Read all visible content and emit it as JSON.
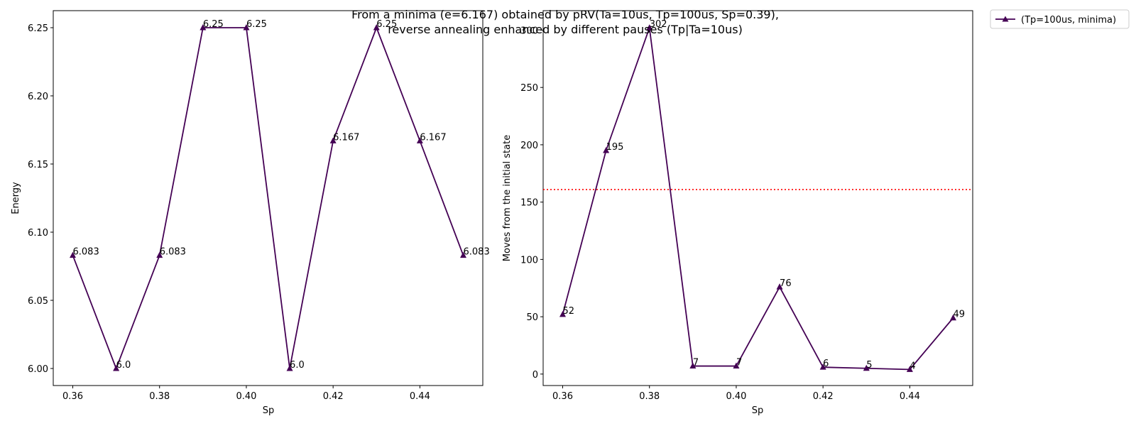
{
  "figure": {
    "title_line1": "From a minima (e=6.167) obtained by pRV(Ta=10us, Tp=100us, Sp=0.39),",
    "title_line2": "reverse annealing enhanced by different pauses (Tp|Ta=10us)"
  },
  "legend": {
    "label": "(Tp=100us, minima)",
    "placement": "upper-right-outside"
  },
  "colors": {
    "series": "#440154",
    "reference_line": "#ff0000"
  },
  "chart_data": [
    {
      "type": "line",
      "xlabel": "Sp",
      "ylabel": "Energy",
      "x": [
        0.36,
        0.37,
        0.38,
        0.39,
        0.4,
        0.41,
        0.42,
        0.43,
        0.44,
        0.45
      ],
      "series": [
        {
          "name": "(Tp=100us, minima)",
          "values": [
            6.083,
            6.0,
            6.083,
            6.25,
            6.25,
            6.0,
            6.167,
            6.25,
            6.167,
            6.083
          ],
          "marker": "triangle-up"
        }
      ],
      "data_labels": [
        "6.083",
        "6.0",
        "6.083",
        "6.25",
        "6.25",
        "6.0",
        "6.167",
        "6.25",
        "6.167",
        "6.083"
      ],
      "xlim": [
        0.3555,
        0.4545
      ],
      "ylim": [
        5.9875,
        6.2625
      ],
      "xticks": [
        0.36,
        0.38,
        0.4,
        0.42,
        0.44
      ],
      "xtick_labels": [
        "0.36",
        "0.38",
        "0.40",
        "0.42",
        "0.44"
      ],
      "yticks": [
        6.0,
        6.05,
        6.1,
        6.15,
        6.2,
        6.25
      ],
      "ytick_labels": [
        "6.00",
        "6.05",
        "6.10",
        "6.15",
        "6.20",
        "6.25"
      ],
      "grid": false
    },
    {
      "type": "line",
      "xlabel": "Sp",
      "ylabel": "Moves from the initial state",
      "x": [
        0.36,
        0.37,
        0.38,
        0.39,
        0.4,
        0.41,
        0.42,
        0.43,
        0.44,
        0.45
      ],
      "series": [
        {
          "name": "(Tp=100us, minima)",
          "values": [
            52,
            195,
            302,
            7,
            7,
            76,
            6,
            5,
            4,
            49
          ],
          "marker": "triangle-up"
        }
      ],
      "data_labels": [
        "52",
        "195",
        "302",
        "7",
        "7",
        "76",
        "6",
        "5",
        "4",
        "49"
      ],
      "reference_line": {
        "orientation": "horizontal",
        "y": 161,
        "style": "dotted"
      },
      "xlim": [
        0.3555,
        0.4545
      ],
      "ylim": [
        -10,
        317
      ],
      "xticks": [
        0.36,
        0.38,
        0.4,
        0.42,
        0.44
      ],
      "xtick_labels": [
        "0.36",
        "0.38",
        "0.40",
        "0.42",
        "0.44"
      ],
      "yticks": [
        0,
        50,
        100,
        150,
        200,
        250,
        300
      ],
      "ytick_labels": [
        "0",
        "50",
        "100",
        "150",
        "200",
        "250",
        "300"
      ],
      "grid": false
    }
  ]
}
